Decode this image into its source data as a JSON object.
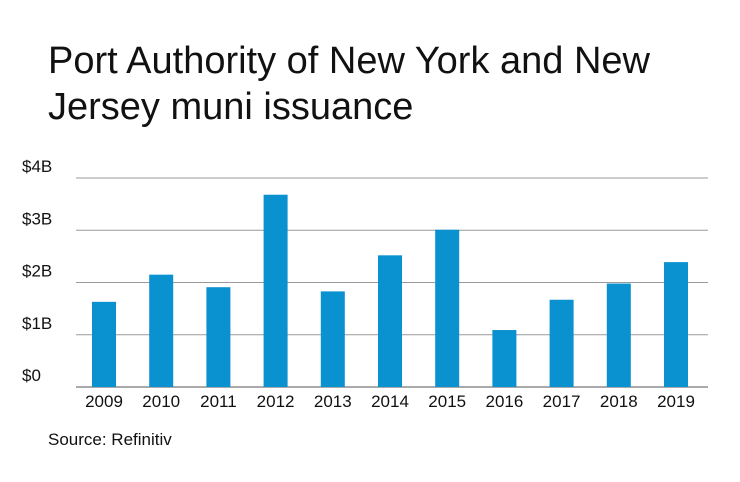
{
  "title": "Port Authority of New York and New Jersey muni issuance",
  "source": "Source: Refinitiv",
  "colors": {
    "bar": "#0a91d0",
    "grid": "#9a9a9a",
    "axis": "#555555"
  },
  "chart_data": {
    "type": "bar",
    "title": "Port Authority of New York and New Jersey muni issuance",
    "xlabel": "",
    "ylabel": "",
    "categories": [
      "2009",
      "2010",
      "2011",
      "2012",
      "2013",
      "2014",
      "2015",
      "2016",
      "2017",
      "2018",
      "2019"
    ],
    "values": [
      1.63,
      2.15,
      1.91,
      3.68,
      1.83,
      2.52,
      3.01,
      1.09,
      1.67,
      1.98,
      2.39
    ],
    "unit": "$B",
    "ylim": [
      0,
      4
    ],
    "yticks": [
      0,
      1,
      2,
      3,
      4
    ],
    "ytick_labels": [
      "$0",
      "$1B",
      "$2B",
      "$3B",
      "$4B"
    ],
    "grid": true,
    "legend": "none"
  }
}
